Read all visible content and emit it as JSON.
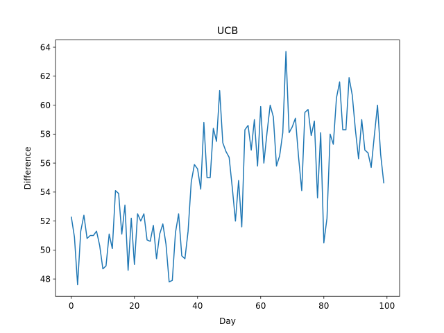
{
  "chart_data": {
    "type": "line",
    "title": "UCB",
    "xlabel": "Day",
    "ylabel": "Difference",
    "xlim": [
      -5,
      104
    ],
    "ylim": [
      46.8,
      64.5
    ],
    "xticks": [
      0,
      20,
      40,
      60,
      80,
      100
    ],
    "yticks": [
      48,
      50,
      52,
      54,
      56,
      58,
      60,
      62,
      64
    ],
    "grid": false,
    "line_color": "#1f77b4",
    "series": [
      {
        "x": [
          0,
          1,
          2,
          3,
          4,
          5,
          6,
          7,
          8,
          9,
          10,
          11,
          12,
          13,
          14,
          15,
          16,
          17,
          18,
          19,
          20,
          21,
          22,
          23,
          24,
          25,
          26,
          27,
          28,
          29,
          30,
          31,
          32,
          33,
          34,
          35,
          36,
          37,
          38,
          39,
          40,
          41,
          42,
          43,
          44,
          45,
          46,
          47,
          48,
          49,
          50,
          51,
          52,
          53,
          54,
          55,
          56,
          57,
          58,
          59,
          60,
          61,
          62,
          63,
          64,
          65,
          66,
          67,
          68,
          69,
          70,
          71,
          72,
          73,
          74,
          75,
          76,
          77,
          78,
          79,
          80,
          81,
          82,
          83,
          84,
          85,
          86,
          87,
          88,
          89,
          90,
          91,
          92,
          93,
          94,
          95,
          96,
          97,
          98,
          99
        ],
        "values": [
          52.3,
          50.9,
          47.6,
          51.3,
          52.4,
          50.8,
          51.0,
          51.0,
          51.3,
          50.3,
          48.7,
          48.9,
          51.1,
          50.1,
          54.1,
          53.9,
          51.1,
          53.1,
          48.6,
          52.2,
          49.0,
          52.5,
          52.0,
          52.5,
          50.7,
          50.6,
          51.7,
          49.4,
          51.1,
          51.8,
          50.4,
          47.8,
          47.9,
          51.2,
          52.5,
          49.6,
          49.4,
          51.3,
          54.7,
          55.9,
          55.6,
          54.2,
          58.8,
          55.0,
          55.0,
          58.4,
          57.5,
          61.0,
          57.4,
          56.8,
          56.4,
          54.3,
          52.0,
          54.8,
          51.6,
          58.3,
          58.6,
          56.9,
          59.0,
          55.8,
          59.9,
          56.0,
          58.1,
          60.0,
          59.2,
          55.8,
          56.5,
          58.1,
          63.7,
          58.1,
          58.5,
          59.1,
          56.4,
          54.1,
          59.5,
          59.7,
          57.9,
          58.9,
          53.6,
          58.1,
          50.5,
          52.2,
          58.0,
          57.3,
          60.5,
          61.6,
          58.3,
          58.3,
          61.9,
          60.7,
          58.3,
          56.3,
          59.0,
          56.9,
          56.7,
          55.7,
          57.9,
          60.0,
          56.6,
          54.6
        ]
      }
    ]
  }
}
